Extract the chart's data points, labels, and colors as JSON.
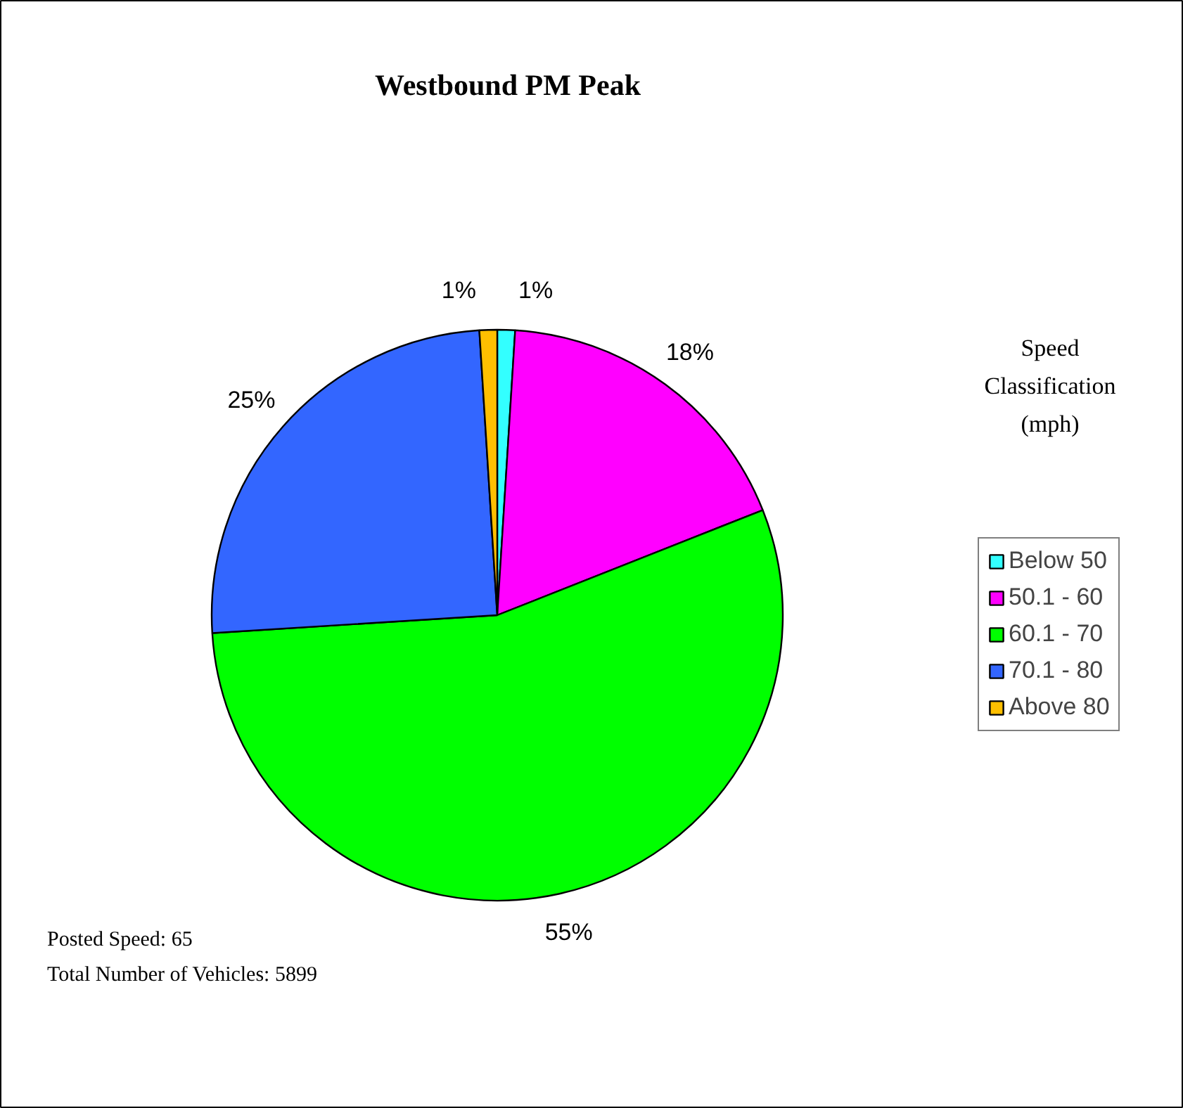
{
  "chart_data": {
    "type": "pie",
    "title": "Westbound PM Peak",
    "legend_title": "Speed Classification (mph)",
    "categories": [
      "Below 50",
      "50.1 - 60",
      "60.1 - 70",
      "70.1 - 80",
      "Above 80"
    ],
    "values": [
      1,
      18,
      55,
      25,
      1
    ],
    "value_labels": [
      "1%",
      "18%",
      "55%",
      "25%",
      "1%"
    ],
    "colors": [
      "#33ffff",
      "#ff00ff",
      "#00ff00",
      "#3366ff",
      "#ffbf00"
    ],
    "legend": "right",
    "annotations": [
      "Posted Speed: 65",
      "Total Number of Vehicles: 5899"
    ]
  }
}
